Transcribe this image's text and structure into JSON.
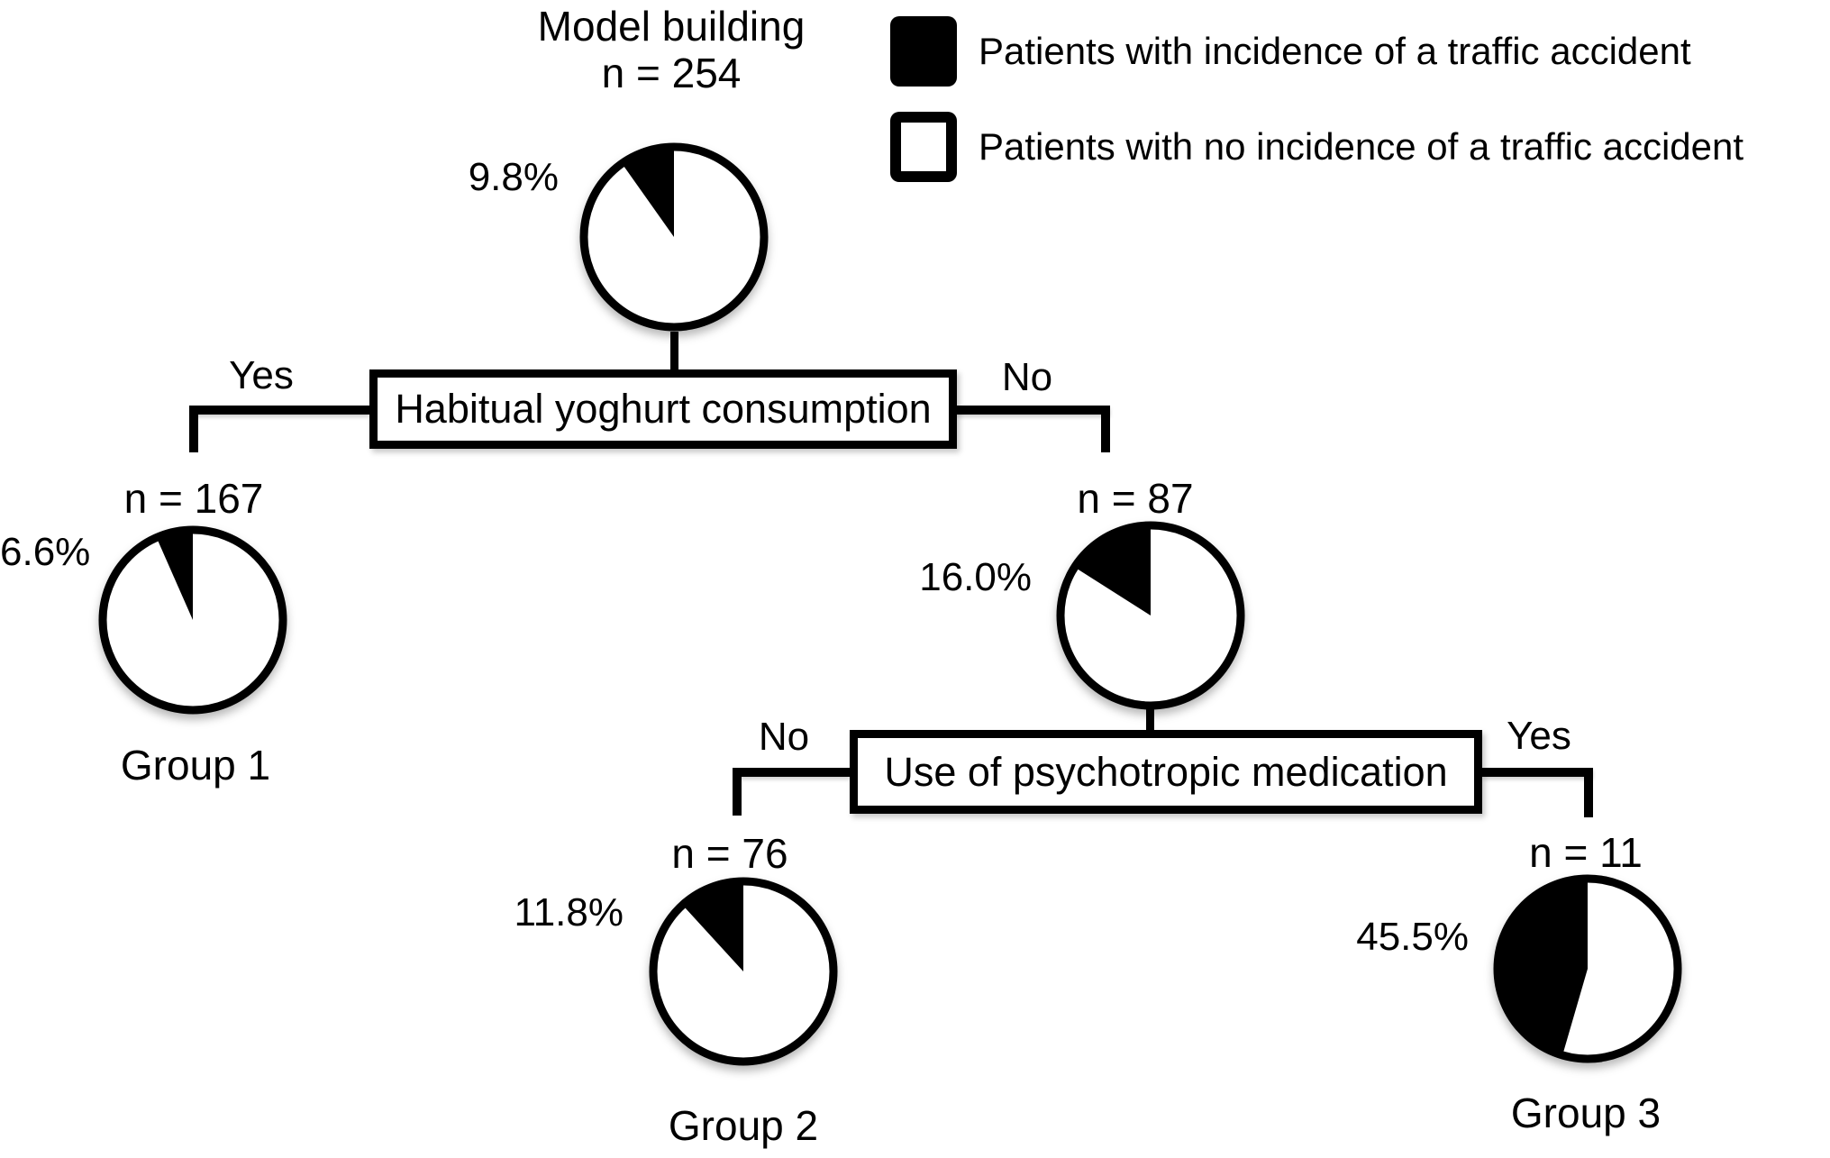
{
  "figure": {
    "root_node": {
      "title": "Model building",
      "n_label": "n = 254",
      "pct_label": "9.8%",
      "pct_value": 9.8
    },
    "legend": {
      "items": [
        {
          "swatch": "filled",
          "color": "#000000",
          "label": "Patients with incidence of a traffic accident"
        },
        {
          "swatch": "outline",
          "color": "#ffffff",
          "label": "Patients with no incidence of a traffic accident"
        }
      ]
    },
    "decision_1": {
      "label": "Habitual yoghurt consumption",
      "left_label": "Yes",
      "right_label": "No"
    },
    "decision_2": {
      "label": "Use of psychotropic medication",
      "left_label": "No",
      "right_label": "Yes"
    },
    "node_group1": {
      "n_label": "n = 167",
      "pct_label": "6.6%",
      "pct_value": 6.6,
      "group_label": "Group 1"
    },
    "node_no_yoghurt": {
      "n_label": "n = 87",
      "pct_label": "16.0%",
      "pct_value": 16.0
    },
    "node_group2": {
      "n_label": "n = 76",
      "pct_label": "11.8%",
      "pct_value": 11.8,
      "group_label": "Group 2"
    },
    "node_group3": {
      "n_label": "n = 11",
      "pct_label": "45.5%",
      "pct_value": 45.5,
      "group_label": "Group 3"
    }
  },
  "chart_data": [
    {
      "type": "pie",
      "title": "Model building",
      "n": 254,
      "labels": [
        "Patients with incidence of a traffic accident",
        "Patients with no incidence of a traffic accident"
      ],
      "values": [
        9.8,
        90.2
      ],
      "annotation": "9.8%"
    },
    {
      "type": "pie",
      "title": "Group 1 (habitual yoghurt consumption: Yes)",
      "n": 167,
      "labels": [
        "Patients with incidence of a traffic accident",
        "Patients with no incidence of a traffic accident"
      ],
      "values": [
        6.6,
        93.4
      ],
      "annotation": "6.6%"
    },
    {
      "type": "pie",
      "title": "Habitual yoghurt consumption: No",
      "n": 87,
      "labels": [
        "Patients with incidence of a traffic accident",
        "Patients with no incidence of a traffic accident"
      ],
      "values": [
        16.0,
        84.0
      ],
      "annotation": "16.0%"
    },
    {
      "type": "pie",
      "title": "Group 2 (psychotropic medication: No)",
      "n": 76,
      "labels": [
        "Patients with incidence of a traffic accident",
        "Patients with no incidence of a traffic accident"
      ],
      "values": [
        11.8,
        88.2
      ],
      "annotation": "11.8%"
    },
    {
      "type": "pie",
      "title": "Group 3 (psychotropic medication: Yes)",
      "n": 11,
      "labels": [
        "Patients with incidence of a traffic accident",
        "Patients with no incidence of a traffic accident"
      ],
      "values": [
        45.5,
        54.5
      ],
      "annotation": "45.5%"
    }
  ]
}
